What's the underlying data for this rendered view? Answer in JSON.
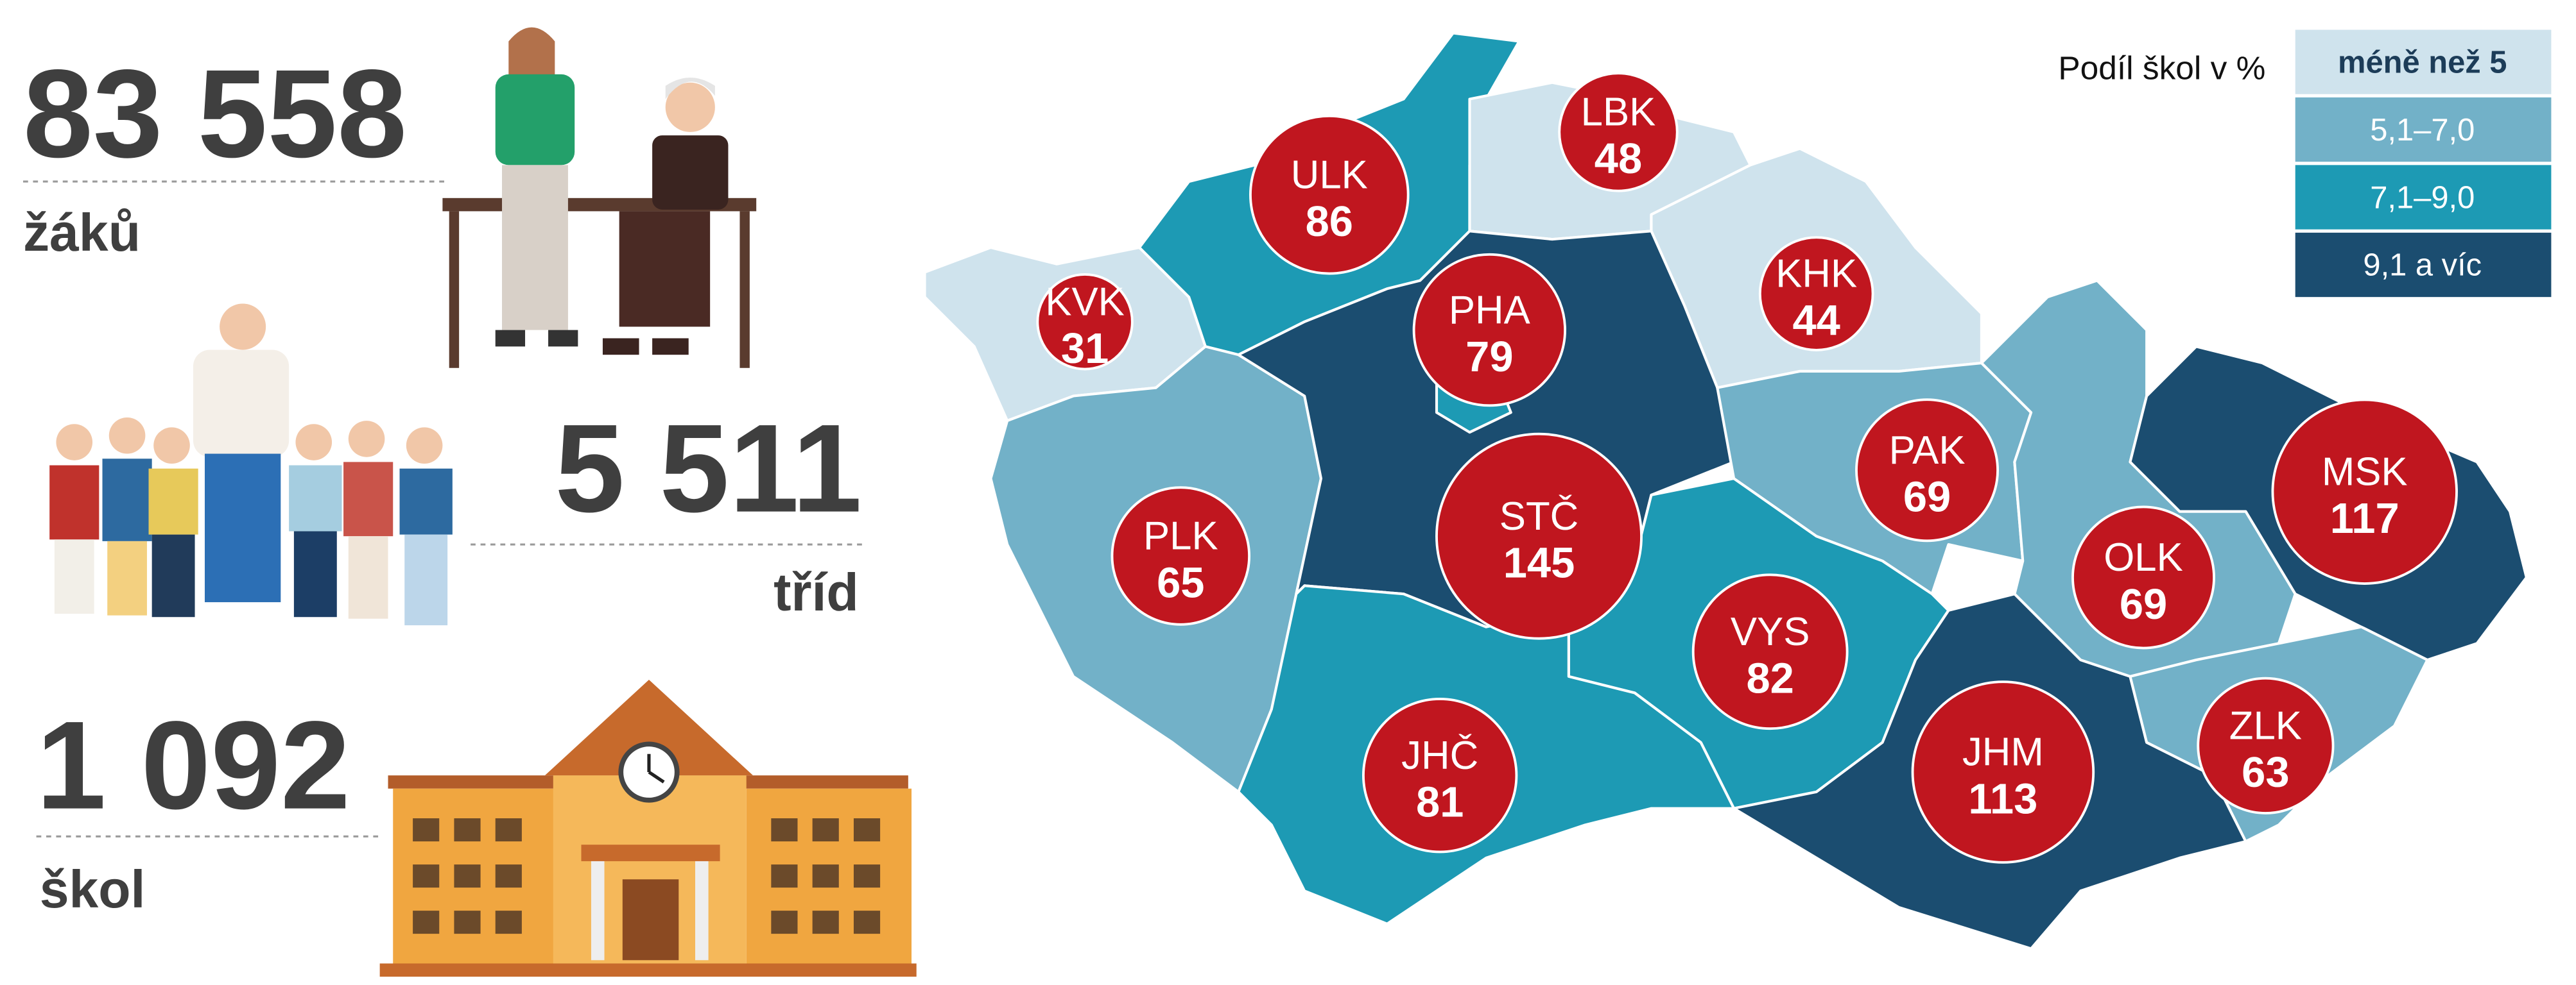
{
  "stats": [
    {
      "number": "83 558",
      "label": "žáků"
    },
    {
      "number": "5 511",
      "label": "tříd"
    },
    {
      "number": "1 092",
      "label": "škol"
    }
  ],
  "legend": {
    "title": "Podíl škol v %",
    "items": [
      {
        "label": "méně než 5",
        "color": "#cfe3ed"
      },
      {
        "label": "5,1–7,0",
        "color": "#72b1c8"
      },
      {
        "label": "7,1–9,0",
        "color": "#1d9ab4"
      },
      {
        "label": "9,1 a víc",
        "color": "#1b4d70"
      }
    ]
  },
  "regions": [
    {
      "code": "KVK",
      "value": 31,
      "color": "#cfe3ed"
    },
    {
      "code": "ULK",
      "value": 86,
      "color": "#1d9ab4"
    },
    {
      "code": "LBK",
      "value": 48,
      "color": "#cfe3ed"
    },
    {
      "code": "KHK",
      "value": 44,
      "color": "#cfe3ed"
    },
    {
      "code": "PLK",
      "value": 65,
      "color": "#72b1c8"
    },
    {
      "code": "STČ",
      "value": 145,
      "color": "#1b4d70"
    },
    {
      "code": "PHA",
      "value": 79,
      "color": "#1d9ab4"
    },
    {
      "code": "PAK",
      "value": 69,
      "color": "#72b1c8"
    },
    {
      "code": "VYS",
      "value": 82,
      "color": "#1d9ab4"
    },
    {
      "code": "JHČ",
      "value": 81,
      "color": "#1d9ab4"
    },
    {
      "code": "JHM",
      "value": 113,
      "color": "#1b4d70"
    },
    {
      "code": "OLK",
      "value": 69,
      "color": "#72b1c8"
    },
    {
      "code": "MSK",
      "value": 117,
      "color": "#1b4d70"
    },
    {
      "code": "ZLK",
      "value": 63,
      "color": "#72b1c8"
    }
  ]
}
